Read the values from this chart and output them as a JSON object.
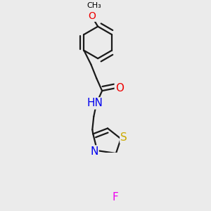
{
  "background_color": "#ebebeb",
  "atom_colors": {
    "C": "#000000",
    "N": "#0000ee",
    "O": "#ee0000",
    "S": "#ccaa00",
    "F": "#ee00ee",
    "H": "#444444"
  },
  "bond_color": "#1a1a1a",
  "bond_width": 1.6,
  "font_size_atom": 10,
  "figsize": [
    3.0,
    3.0
  ],
  "dpi": 100
}
